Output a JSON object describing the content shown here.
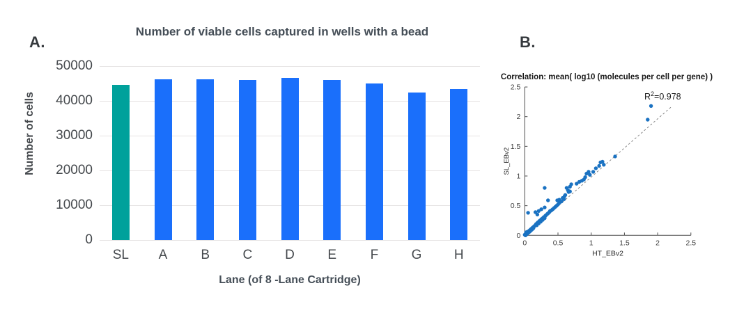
{
  "figure": {
    "panel_a_label": "A.",
    "panel_b_label": "B."
  },
  "colors": {
    "bar_blue": "#1a6ffb",
    "bar_teal": "#00a19b",
    "scatter_point": "#1a72c2",
    "fit_line": "#7a7a7a",
    "axis": "#4d4d4d",
    "grid": "#e6e3e3"
  },
  "chart_data": [
    {
      "type": "bar",
      "title": "Number of viable cells captured in wells with a bead",
      "xlabel": "Lane (of 8 -Lane Cartridge)",
      "ylabel": "Number of cells",
      "categories": [
        "SL",
        "A",
        "B",
        "C",
        "D",
        "E",
        "F",
        "G",
        "H"
      ],
      "values": [
        44600,
        46200,
        46150,
        46000,
        46600,
        46000,
        45000,
        42500,
        43400
      ],
      "highlight_category": "SL",
      "ylim": [
        0,
        50000
      ],
      "yticks": [
        50000,
        40000,
        30000,
        20000,
        10000,
        0
      ],
      "grid": true,
      "legend": "none"
    },
    {
      "type": "scatter",
      "title": "Correlation: mean( log10 (molecules per cell per gene) )",
      "xlabel": "HT_EBv2",
      "ylabel": "SL_EBv2",
      "annotation": {
        "base": "R",
        "sup": "2",
        "rest": "=0.978"
      },
      "xlim": [
        0,
        2.5
      ],
      "ylim": [
        0,
        2.5
      ],
      "xticks": [
        0,
        0.5,
        1,
        1.5,
        2,
        2.5
      ],
      "yticks": [
        0,
        0.5,
        1,
        1.5,
        2,
        2.5
      ],
      "fit_line": {
        "x1": 0,
        "y1": 0,
        "x2": 2.2,
        "y2": 2.16,
        "style": "dashed"
      },
      "points": [
        [
          0.0,
          0.01
        ],
        [
          0.01,
          0.0
        ],
        [
          0.01,
          0.02
        ],
        [
          0.02,
          0.01
        ],
        [
          0.02,
          0.03
        ],
        [
          0.03,
          0.02
        ],
        [
          0.03,
          0.04
        ],
        [
          0.04,
          0.03
        ],
        [
          0.04,
          0.06
        ],
        [
          0.05,
          0.04
        ],
        [
          0.05,
          0.06
        ],
        [
          0.06,
          0.05
        ],
        [
          0.06,
          0.07
        ],
        [
          0.07,
          0.06
        ],
        [
          0.07,
          0.08
        ],
        [
          0.08,
          0.07
        ],
        [
          0.08,
          0.09
        ],
        [
          0.09,
          0.08
        ],
        [
          0.09,
          0.1
        ],
        [
          0.1,
          0.09
        ],
        [
          0.1,
          0.11
        ],
        [
          0.11,
          0.1
        ],
        [
          0.11,
          0.12
        ],
        [
          0.12,
          0.13
        ],
        [
          0.13,
          0.12
        ],
        [
          0.13,
          0.14
        ],
        [
          0.14,
          0.15
        ],
        [
          0.15,
          0.16
        ],
        [
          0.02,
          0.05
        ],
        [
          0.05,
          0.38
        ],
        [
          0.16,
          0.17
        ],
        [
          0.17,
          0.19
        ],
        [
          0.18,
          0.17
        ],
        [
          0.19,
          0.21
        ],
        [
          0.19,
          0.35
        ],
        [
          0.2,
          0.22
        ],
        [
          0.21,
          0.2
        ],
        [
          0.21,
          0.41
        ],
        [
          0.22,
          0.24
        ],
        [
          0.23,
          0.25
        ],
        [
          0.24,
          0.23
        ],
        [
          0.25,
          0.27
        ],
        [
          0.16,
          0.39
        ],
        [
          0.26,
          0.28
        ],
        [
          0.27,
          0.26
        ],
        [
          0.28,
          0.3
        ],
        [
          0.29,
          0.31
        ],
        [
          0.3,
          0.29
        ],
        [
          0.25,
          0.44
        ],
        [
          0.3,
          0.47
        ],
        [
          0.31,
          0.33
        ],
        [
          0.32,
          0.34
        ],
        [
          0.34,
          0.36
        ],
        [
          0.35,
          0.37
        ],
        [
          0.3,
          0.8
        ],
        [
          0.35,
          0.59
        ],
        [
          0.37,
          0.39
        ],
        [
          0.38,
          0.41
        ],
        [
          0.4,
          0.42
        ],
        [
          0.42,
          0.44
        ],
        [
          0.44,
          0.46
        ],
        [
          0.46,
          0.48
        ],
        [
          0.48,
          0.5
        ],
        [
          0.49,
          0.59
        ],
        [
          0.5,
          0.52
        ],
        [
          0.52,
          0.6
        ],
        [
          0.52,
          0.55
        ],
        [
          0.55,
          0.57
        ],
        [
          0.57,
          0.63
        ],
        [
          0.59,
          0.61
        ],
        [
          0.6,
          0.66
        ],
        [
          0.61,
          0.68
        ],
        [
          0.63,
          0.8
        ],
        [
          0.65,
          0.76
        ],
        [
          0.66,
          0.73
        ],
        [
          0.68,
          0.82
        ],
        [
          0.68,
          0.74
        ],
        [
          0.7,
          0.86
        ],
        [
          0.78,
          0.87
        ],
        [
          0.82,
          0.9
        ],
        [
          0.86,
          0.92
        ],
        [
          0.89,
          0.94
        ],
        [
          0.91,
          0.98
        ],
        [
          0.93,
          1.04
        ],
        [
          0.96,
          1.07
        ],
        [
          0.98,
          1.02
        ],
        [
          1.03,
          1.07
        ],
        [
          1.07,
          1.13
        ],
        [
          1.12,
          1.17
        ],
        [
          1.14,
          1.23
        ],
        [
          1.17,
          1.24
        ],
        [
          1.19,
          1.19
        ],
        [
          1.36,
          1.33
        ],
        [
          1.85,
          1.95
        ],
        [
          1.9,
          2.18
        ]
      ]
    }
  ]
}
